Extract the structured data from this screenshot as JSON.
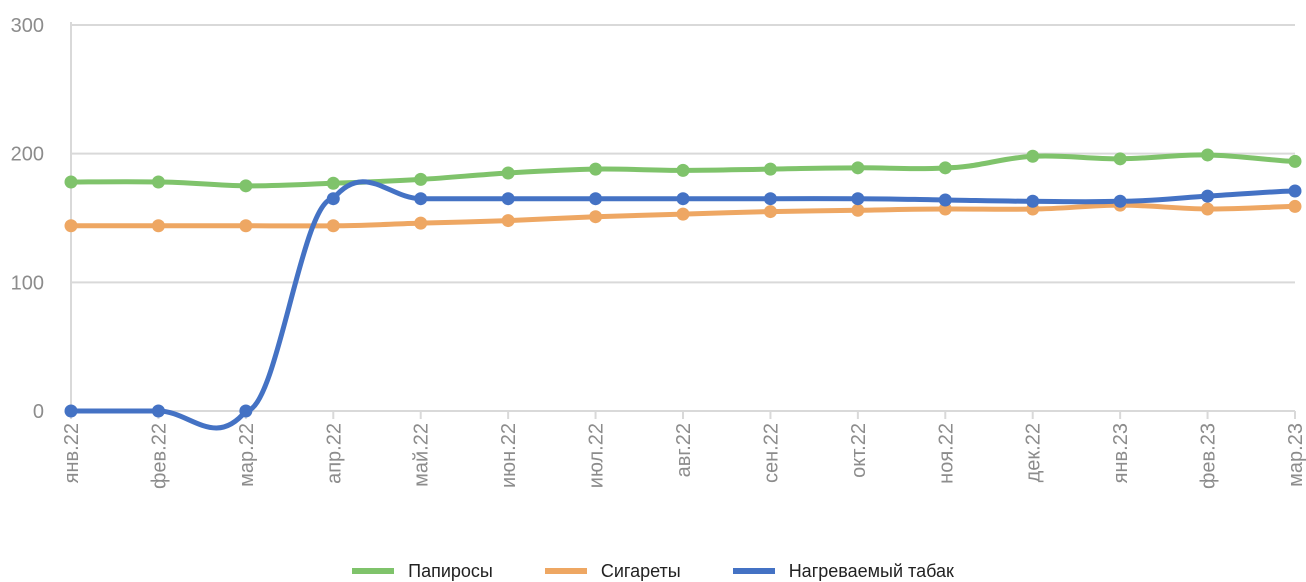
{
  "chart_data": {
    "type": "line",
    "title": "",
    "xlabel": "",
    "ylabel": "",
    "ylim": [
      0,
      300
    ],
    "yticks": [
      "0",
      "100",
      "200",
      "300"
    ],
    "grid": true,
    "legend_position": "bottom",
    "smooth": true,
    "categories": [
      "янв.22",
      "фев.22",
      "мар.22",
      "апр.22",
      "май.22",
      "июн.22",
      "июл.22",
      "авг.22",
      "сен.22",
      "окт.22",
      "ноя.22",
      "дек.22",
      "янв.23",
      "фев.23",
      "мар.23"
    ],
    "series": [
      {
        "name": "Папиросы",
        "color": "#7fc36b",
        "values": [
          178,
          178,
          175,
          177,
          180,
          185,
          188,
          187,
          188,
          189,
          189,
          198,
          196,
          199,
          194
        ]
      },
      {
        "name": "Сигареты",
        "color": "#eea763",
        "values": [
          144,
          144,
          144,
          144,
          146,
          148,
          151,
          153,
          155,
          156,
          157,
          157,
          160,
          157,
          159
        ]
      },
      {
        "name": "Нагреваемый табак",
        "color": "#4472c4",
        "values": [
          0,
          0,
          0,
          165,
          165,
          165,
          165,
          165,
          165,
          165,
          164,
          163,
          163,
          167,
          171
        ]
      }
    ]
  }
}
